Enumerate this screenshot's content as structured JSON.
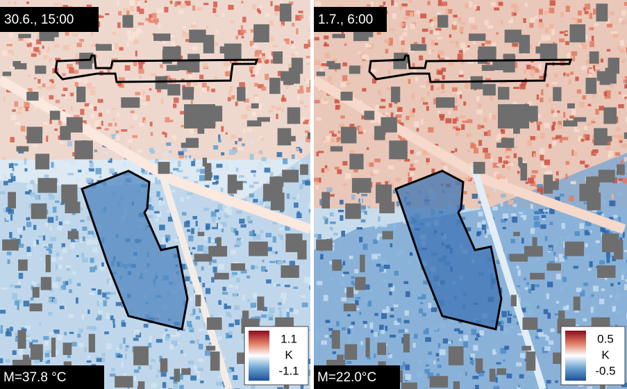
{
  "panels": [
    {
      "title": "30.6., 15:00",
      "mean": "M=37.8 °C",
      "colorbar": {
        "max": "1.1",
        "unit": "K",
        "min": "-1.1"
      }
    },
    {
      "title": "1.7., 6:00",
      "mean": "M=22.0°C",
      "colorbar": {
        "max": "0.5",
        "unit": "K",
        "min": "-0.5"
      }
    }
  ]
}
